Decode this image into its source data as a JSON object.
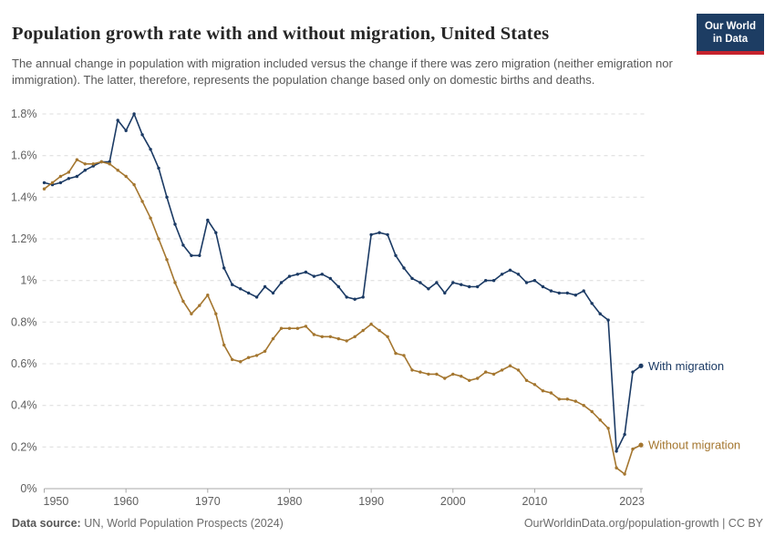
{
  "header": {
    "title": "Population growth rate with and without migration, United States",
    "subtitle": "The annual change in population with migration included versus the change if there was zero migration (neither emigration nor immigration). The latter, therefore, represents the population change based only on domestic births and deaths.",
    "logo": {
      "line1": "Our World",
      "line2": "in Data",
      "bg_color": "#1d3d63",
      "stripe_color": "#c5232d"
    }
  },
  "footer": {
    "source_label": "Data source:",
    "source_value": " UN, World Population Prospects (2024)",
    "attribution": "OurWorldinData.org/population-growth | CC BY"
  },
  "chart_data": {
    "type": "line",
    "title": "Population growth rate with and without migration, United States",
    "xlabel": "",
    "ylabel": "",
    "units": "%",
    "grid": "horizontal-dashed",
    "legend_position": "line-end-labels",
    "xlim": [
      1950,
      2023
    ],
    "ylim": [
      0,
      1.8
    ],
    "xticks": [
      1950,
      1960,
      1970,
      1980,
      1990,
      2000,
      2010,
      2023
    ],
    "ytick_values": [
      0,
      0.2,
      0.4,
      0.6,
      0.8,
      1.0,
      1.2,
      1.4,
      1.6,
      1.8
    ],
    "ytick_labels": [
      "0%",
      "0.2%",
      "0.4%",
      "0.6%",
      "0.8%",
      "1%",
      "1.2%",
      "1.4%",
      "1.6%",
      "1.8%"
    ],
    "colors": {
      "grid": "#dcdcdc",
      "axis": "#a8a8a8",
      "tick_label": "#5f5f5f"
    },
    "years": [
      1950,
      1951,
      1952,
      1953,
      1954,
      1955,
      1956,
      1957,
      1958,
      1959,
      1960,
      1961,
      1962,
      1963,
      1964,
      1965,
      1966,
      1967,
      1968,
      1969,
      1970,
      1971,
      1972,
      1973,
      1974,
      1975,
      1976,
      1977,
      1978,
      1979,
      1980,
      1981,
      1982,
      1983,
      1984,
      1985,
      1986,
      1987,
      1988,
      1989,
      1990,
      1991,
      1992,
      1993,
      1994,
      1995,
      1996,
      1997,
      1998,
      1999,
      2000,
      2001,
      2002,
      2003,
      2004,
      2005,
      2006,
      2007,
      2008,
      2009,
      2010,
      2011,
      2012,
      2013,
      2014,
      2015,
      2016,
      2017,
      2018,
      2019,
      2020,
      2021,
      2022,
      2023
    ],
    "series": [
      {
        "name": "With migration",
        "color": "#1b3a64",
        "values": [
          1.47,
          1.46,
          1.47,
          1.49,
          1.5,
          1.53,
          1.55,
          1.57,
          1.57,
          1.77,
          1.72,
          1.8,
          1.7,
          1.63,
          1.54,
          1.4,
          1.27,
          1.17,
          1.12,
          1.12,
          1.29,
          1.23,
          1.06,
          0.98,
          0.96,
          0.94,
          0.92,
          0.97,
          0.94,
          0.99,
          1.02,
          1.03,
          1.04,
          1.02,
          1.03,
          1.01,
          0.97,
          0.92,
          0.91,
          0.92,
          1.22,
          1.23,
          1.22,
          1.12,
          1.06,
          1.01,
          0.99,
          0.96,
          0.99,
          0.94,
          0.99,
          0.98,
          0.97,
          0.97,
          1.0,
          1.0,
          1.03,
          1.05,
          1.03,
          0.99,
          1.0,
          0.97,
          0.95,
          0.94,
          0.94,
          0.93,
          0.95,
          0.89,
          0.84,
          0.81,
          0.18,
          0.26,
          0.56,
          0.59
        ]
      },
      {
        "name": "Without migration",
        "color": "#a4762f",
        "values": [
          1.44,
          1.47,
          1.5,
          1.52,
          1.58,
          1.56,
          1.56,
          1.57,
          1.56,
          1.53,
          1.5,
          1.46,
          1.38,
          1.3,
          1.2,
          1.1,
          0.99,
          0.9,
          0.84,
          0.88,
          0.93,
          0.84,
          0.69,
          0.62,
          0.61,
          0.63,
          0.64,
          0.66,
          0.72,
          0.77,
          0.77,
          0.77,
          0.78,
          0.74,
          0.73,
          0.73,
          0.72,
          0.71,
          0.73,
          0.76,
          0.79,
          0.76,
          0.73,
          0.65,
          0.64,
          0.57,
          0.56,
          0.55,
          0.55,
          0.53,
          0.55,
          0.54,
          0.52,
          0.53,
          0.56,
          0.55,
          0.57,
          0.59,
          0.57,
          0.52,
          0.5,
          0.47,
          0.46,
          0.43,
          0.43,
          0.42,
          0.4,
          0.37,
          0.33,
          0.29,
          0.1,
          0.07,
          0.19,
          0.21
        ]
      }
    ]
  }
}
